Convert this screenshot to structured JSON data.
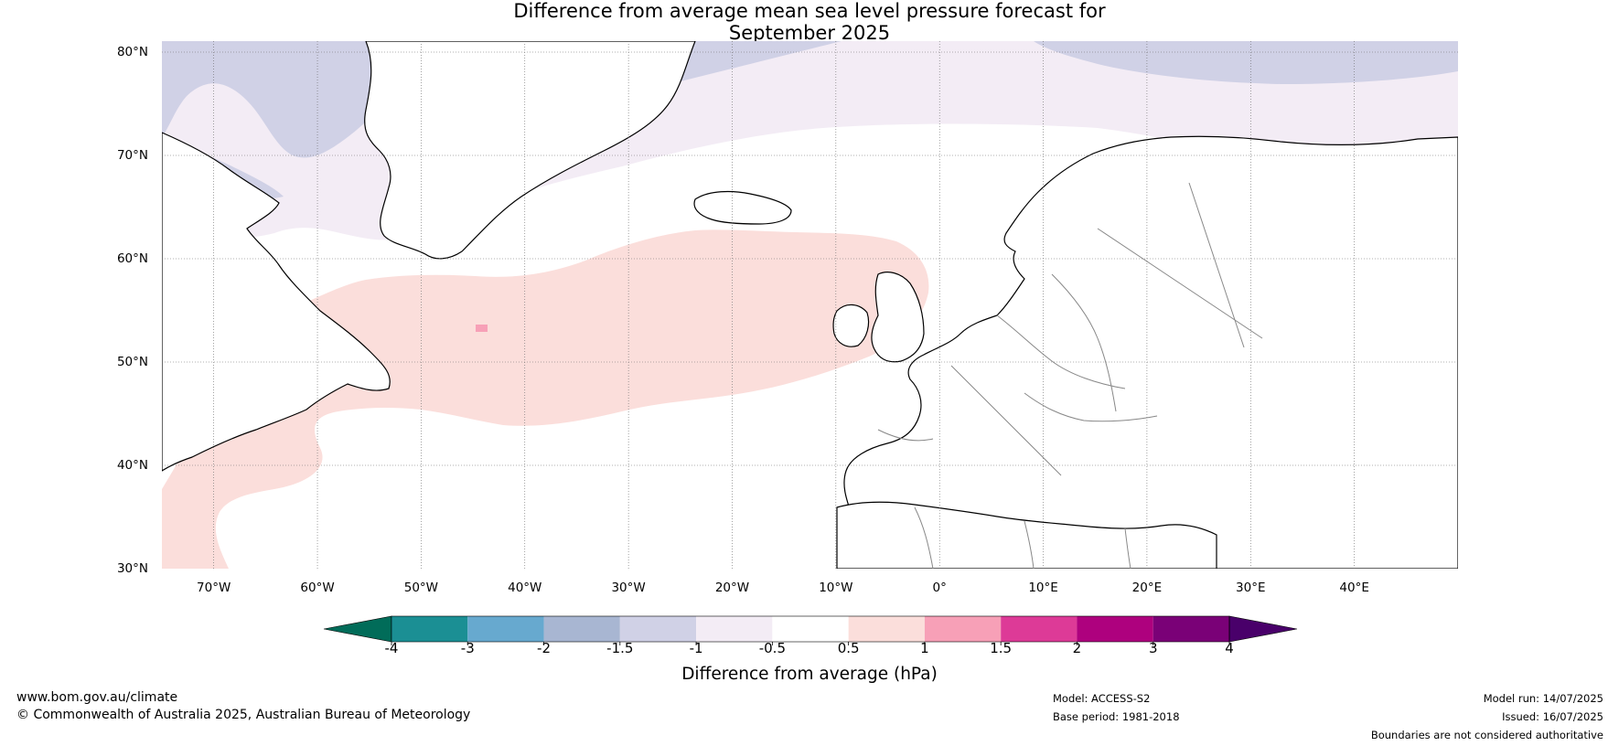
{
  "title_line1": "Difference from average mean sea level pressure forecast for",
  "title_line2": "September 2025",
  "lat_labels": [
    "80°N",
    "70°N",
    "60°N",
    "50°N",
    "40°N",
    "30°N"
  ],
  "lon_labels": [
    "70°W",
    "60°W",
    "50°W",
    "40°W",
    "30°W",
    "20°W",
    "10°W",
    "0°",
    "10°E",
    "20°E",
    "30°E",
    "40°E"
  ],
  "colorbar": {
    "ticks": [
      "-4",
      "-3",
      "-2",
      "-1.5",
      "-1",
      "-0.5",
      "0.5",
      "1",
      "1.5",
      "2",
      "3",
      "4"
    ],
    "colors": [
      "#1b8f94",
      "#67a9cf",
      "#a8b6d2",
      "#d0d1e6",
      "#f3ecf5",
      "#ffffff",
      "#fbdedb",
      "#f7a0b7",
      "#dd3a97",
      "#ae017e",
      "#7a0177"
    ],
    "under_color": "#016c59",
    "over_color": "#49006a",
    "title": "Difference from average (hPa)"
  },
  "footer": {
    "url": "www.bom.gov.au/climate",
    "copyright": "© Commonwealth of Australia 2025, Australian Bureau of Meteorology",
    "model": "Model: ACCESS-S2",
    "base_period": "Base period: 1981-2018",
    "model_run": "Model run: 14/07/2025",
    "issued": "Issued: 16/07/2025",
    "disclaimer": "Boundaries are not considered authoritative"
  }
}
